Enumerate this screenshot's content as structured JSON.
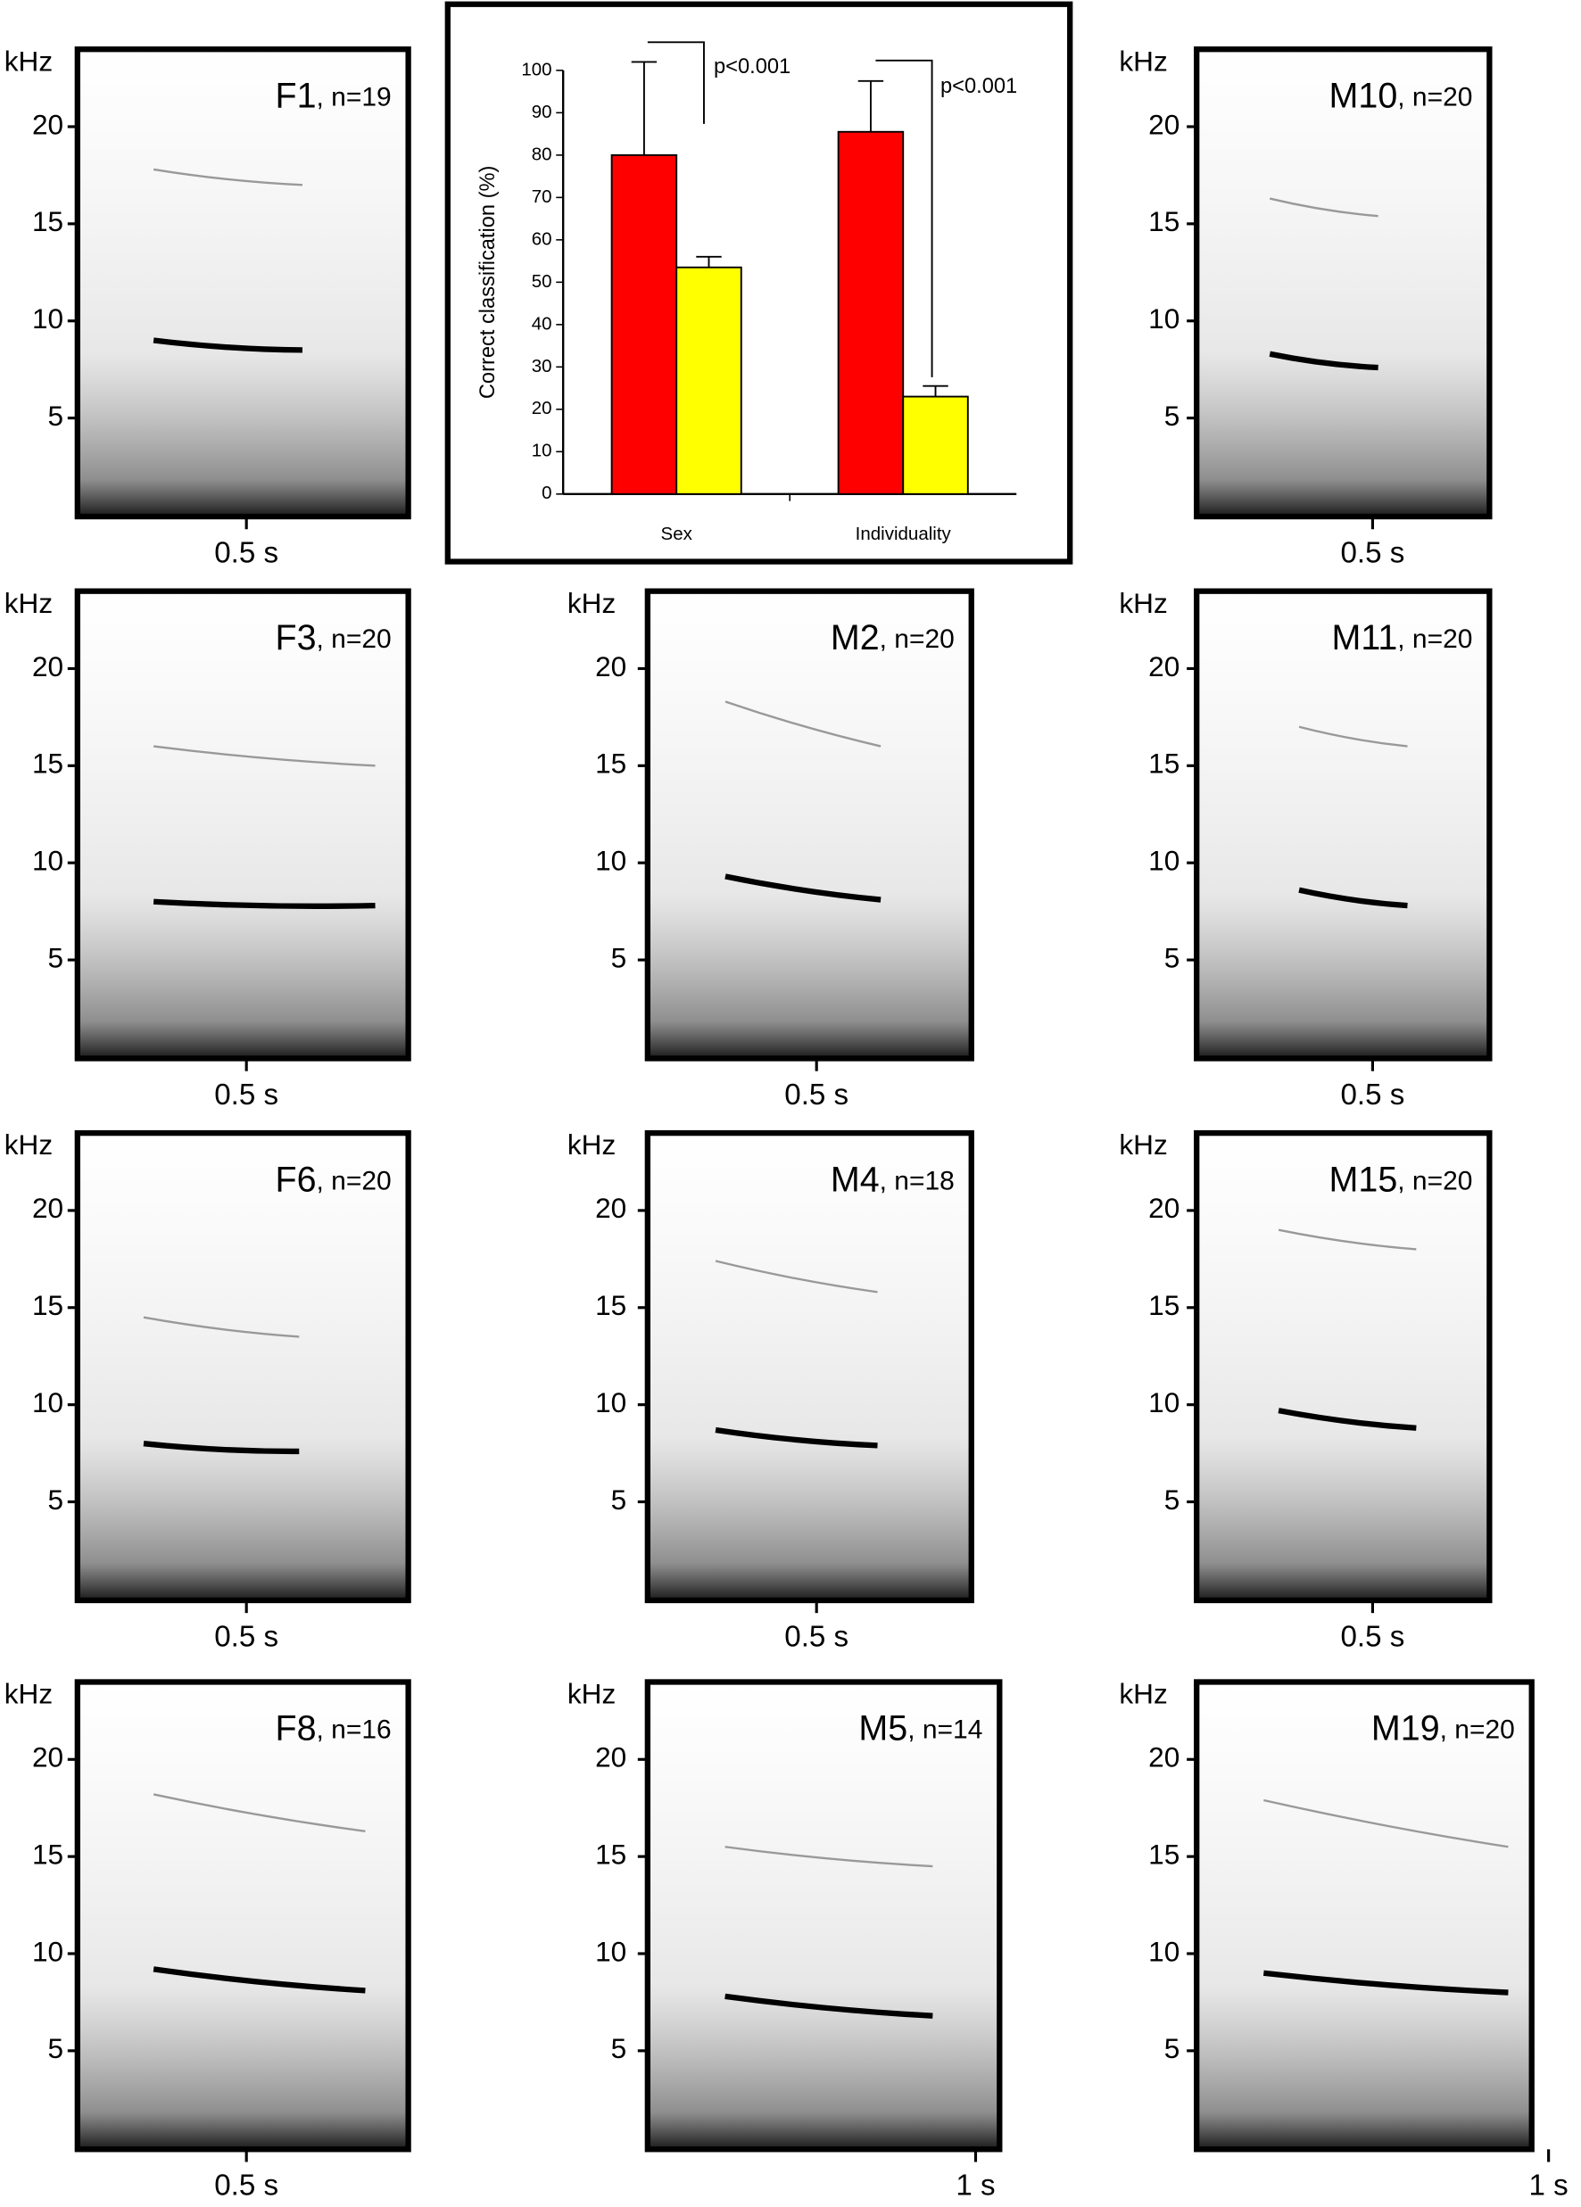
{
  "chart_data": {
    "type": "bar",
    "ylabel": "Correct classification (%)",
    "categories": [
      "Sex",
      "Individuality"
    ],
    "series": [
      {
        "color": "#ff0000",
        "values": [
          80,
          85.5
        ],
        "errors": [
          22,
          12
        ]
      },
      {
        "color": "#ffff00",
        "values": [
          53.5,
          23
        ],
        "errors": [
          2.5,
          2.5
        ]
      }
    ],
    "annotations": [
      "p<0.001",
      "p<0.001"
    ],
    "ylim": [
      0,
      100
    ],
    "yticks": [
      0,
      10,
      20,
      30,
      40,
      50,
      60,
      70,
      80,
      90,
      100
    ]
  },
  "spectrograms": [
    {
      "id": "F1",
      "n": ", n=19",
      "ylabel": "kHz",
      "yticks": [
        5,
        10,
        15,
        20
      ],
      "time": "0.5 s"
    },
    {
      "id": "M10",
      "n": ", n=20",
      "ylabel": "kHz",
      "yticks": [
        5,
        10,
        15,
        20
      ],
      "time": "0.5 s"
    },
    {
      "id": "F3",
      "n": ", n=20",
      "ylabel": "kHz",
      "yticks": [
        5,
        10,
        15,
        20
      ],
      "time": "0.5 s"
    },
    {
      "id": "M2",
      "n": ", n=20",
      "ylabel": "kHz",
      "yticks": [
        5,
        10,
        15,
        20
      ],
      "time": "0.5 s"
    },
    {
      "id": "M11",
      "n": ", n=20",
      "ylabel": "kHz",
      "yticks": [
        5,
        10,
        15,
        20
      ],
      "time": "0.5 s"
    },
    {
      "id": "F6",
      "n": ", n=20",
      "ylabel": "kHz",
      "yticks": [
        5,
        10,
        15,
        20
      ],
      "time": "0.5 s"
    },
    {
      "id": "M4",
      "n": ", n=18",
      "ylabel": "kHz",
      "yticks": [
        5,
        10,
        15,
        20
      ],
      "time": "0.5 s"
    },
    {
      "id": "M15",
      "n": ", n=20",
      "ylabel": "kHz",
      "yticks": [
        5,
        10,
        15,
        20
      ],
      "time": "0.5 s"
    },
    {
      "id": "F8",
      "n": ", n=16",
      "ylabel": "kHz",
      "yticks": [
        5,
        10,
        15,
        20
      ],
      "time": "0.5 s"
    },
    {
      "id": "M5",
      "n": ", n=14",
      "ylabel": "kHz",
      "yticks": [
        5,
        10,
        15,
        20
      ],
      "time": "1 s"
    },
    {
      "id": "M19",
      "n": ", n=20",
      "ylabel": "kHz",
      "yticks": [
        5,
        10,
        15,
        20
      ],
      "time": "1 s"
    }
  ]
}
